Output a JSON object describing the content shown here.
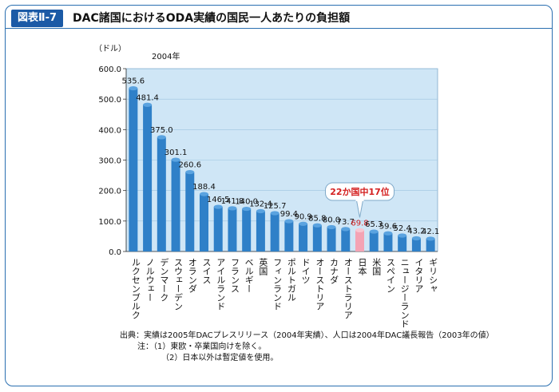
{
  "header": {
    "badge": "図表Ⅱ-7",
    "title": "DAC諸国におけるODA実績の国民一人あたりの負担額"
  },
  "chart_data": {
    "type": "bar",
    "unit_label": "（ドル）",
    "year_label": "2004年",
    "categories": [
      "ルクセンブルク",
      "ノルウェー",
      "デンマーク",
      "スウェーデン",
      "オランダ",
      "スイス",
      "アイルランド",
      "フランス",
      "ベルギー",
      "英国",
      "フィンランド",
      "ポルトガル",
      "ドイツ",
      "オーストリア",
      "カナダ",
      "オーストラリア",
      "日本",
      "米国",
      "スペイン",
      "ニュージーランド",
      "イタリア",
      "ギリシャ"
    ],
    "values": [
      535.6,
      481.4,
      375.0,
      301.1,
      260.6,
      188.4,
      146.5,
      141.8,
      140.0,
      132.4,
      125.7,
      99.4,
      90.9,
      85.8,
      80.0,
      73.7,
      69.8,
      65.3,
      59.6,
      52.4,
      43.2,
      42.1
    ],
    "value_labels": [
      "535.6",
      "481.4",
      "375.0",
      "301.1",
      "260.6",
      "188.4",
      "146.5",
      "141.8",
      "140.0",
      "132.4",
      "125.7",
      "99.4",
      "90.9",
      "85.8",
      "80.0",
      "73.7",
      "69.8",
      "65.3",
      "59.6",
      "52.4",
      "43.2",
      "42.1"
    ],
    "highlight_index": 16,
    "highlight_callout": "22か国中17位",
    "ylim": [
      0,
      600
    ],
    "yticks": [
      "0.0",
      "100.0",
      "200.0",
      "300.0",
      "400.0",
      "500.0",
      "600.0"
    ],
    "colors": {
      "bar": "#2f80c8",
      "bar_top": "#5aa3e0",
      "highlight": "#f4a3b4",
      "plot_bg": "#cfe6f6",
      "callout_text": "#d42020"
    }
  },
  "notes": {
    "source": "出典：実績は2005年DACプレスリリース（2004年実績）、人口は2004年DAC議長報告（2003年の値）",
    "note1": "注：（1）東欧・卒業国向けを除く。",
    "note2": "（2）日本以外は暫定値を使用。"
  }
}
